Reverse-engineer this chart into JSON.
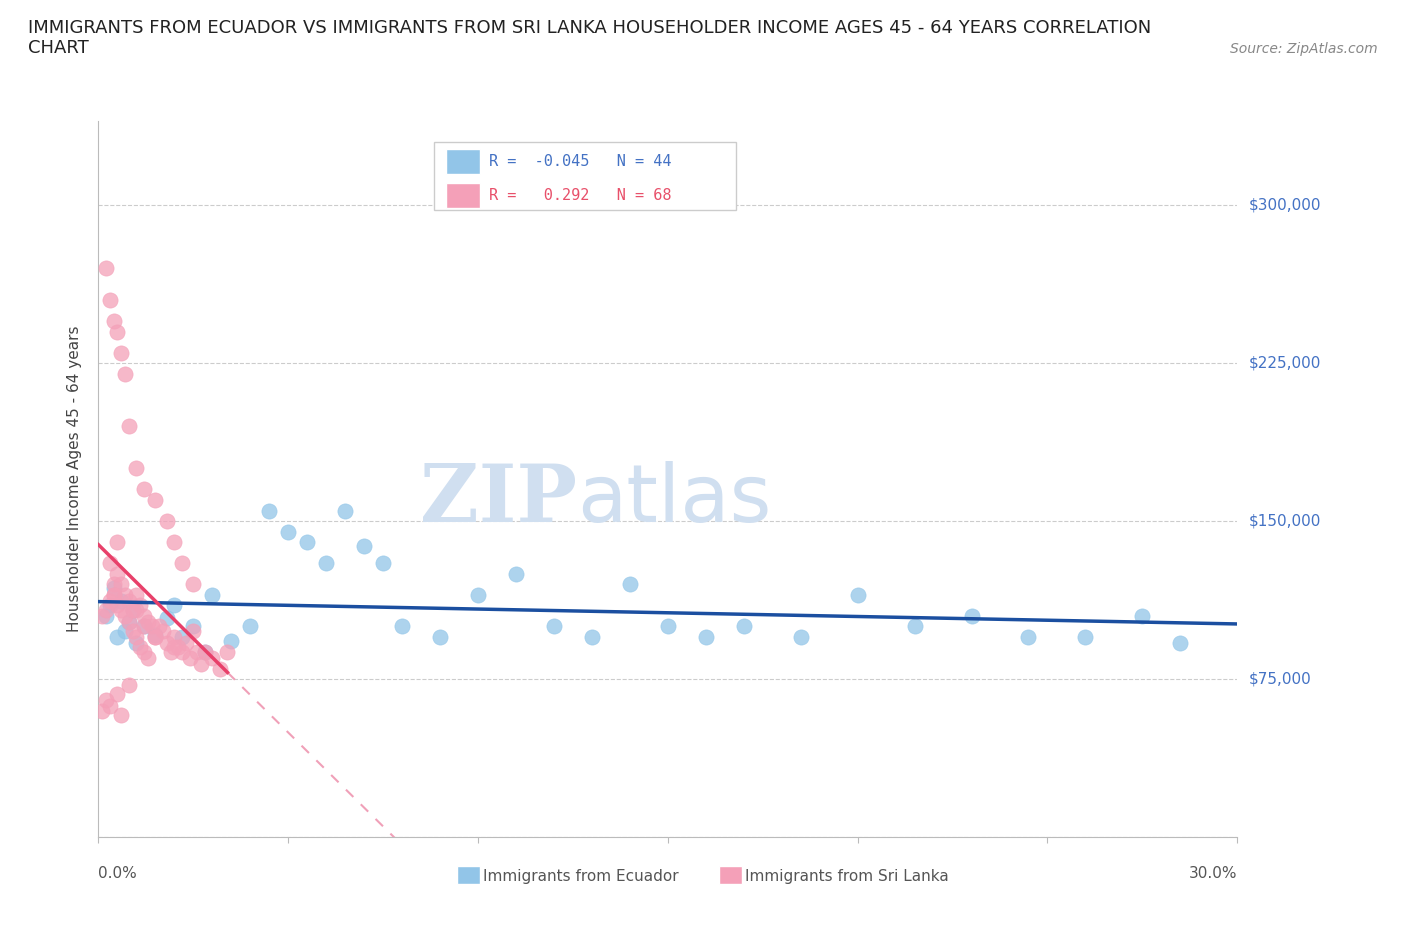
{
  "title": "IMMIGRANTS FROM ECUADOR VS IMMIGRANTS FROM SRI LANKA HOUSEHOLDER INCOME AGES 45 - 64 YEARS CORRELATION\nCHART",
  "source": "Source: ZipAtlas.com",
  "ylabel": "Householder Income Ages 45 - 64 years",
  "xlim": [
    0.0,
    0.3
  ],
  "ylim": [
    0,
    340000
  ],
  "yticks": [
    0,
    75000,
    150000,
    225000,
    300000
  ],
  "ytick_labels": [
    "",
    "$75,000",
    "$150,000",
    "$225,000",
    "$300,000"
  ],
  "xticks": [
    0.0,
    0.05,
    0.1,
    0.15,
    0.2,
    0.25,
    0.3
  ],
  "ecuador_R": -0.045,
  "ecuador_N": 44,
  "srilanka_R": 0.292,
  "srilanka_N": 68,
  "ecuador_color": "#92C5E8",
  "srilanka_color": "#F4A0B8",
  "ecuador_line_color": "#1B4FA0",
  "srilanka_line_color": "#E8406A",
  "srilanka_dash_color": "#F0A0B8",
  "watermark_color": "#D0DFF0",
  "ecuador_x": [
    0.002,
    0.003,
    0.004,
    0.005,
    0.006,
    0.007,
    0.008,
    0.009,
    0.01,
    0.012,
    0.015,
    0.018,
    0.02,
    0.022,
    0.025,
    0.028,
    0.03,
    0.035,
    0.04,
    0.045,
    0.05,
    0.055,
    0.06,
    0.065,
    0.07,
    0.075,
    0.08,
    0.09,
    0.1,
    0.11,
    0.12,
    0.13,
    0.14,
    0.15,
    0.16,
    0.17,
    0.185,
    0.2,
    0.215,
    0.23,
    0.245,
    0.26,
    0.275,
    0.285
  ],
  "ecuador_y": [
    105000,
    110000,
    118000,
    95000,
    112000,
    98000,
    102000,
    108000,
    92000,
    100000,
    96000,
    104000,
    110000,
    95000,
    100000,
    88000,
    115000,
    93000,
    100000,
    155000,
    145000,
    140000,
    130000,
    155000,
    138000,
    130000,
    100000,
    95000,
    115000,
    125000,
    100000,
    95000,
    120000,
    100000,
    95000,
    100000,
    95000,
    115000,
    100000,
    105000,
    95000,
    95000,
    105000,
    92000
  ],
  "srilanka_x": [
    0.003,
    0.004,
    0.004,
    0.005,
    0.005,
    0.005,
    0.006,
    0.006,
    0.007,
    0.007,
    0.008,
    0.008,
    0.009,
    0.009,
    0.01,
    0.01,
    0.011,
    0.011,
    0.012,
    0.012,
    0.013,
    0.013,
    0.014,
    0.015,
    0.016,
    0.017,
    0.018,
    0.019,
    0.02,
    0.021,
    0.022,
    0.023,
    0.024,
    0.025,
    0.026,
    0.027,
    0.028,
    0.03,
    0.032,
    0.034,
    0.002,
    0.003,
    0.004,
    0.005,
    0.006,
    0.007,
    0.008,
    0.01,
    0.012,
    0.015,
    0.018,
    0.02,
    0.022,
    0.025,
    0.001,
    0.001,
    0.002,
    0.002,
    0.003,
    0.003,
    0.004,
    0.005,
    0.006,
    0.008,
    0.01,
    0.012,
    0.015,
    0.02
  ],
  "srilanka_y": [
    130000,
    120000,
    115000,
    140000,
    125000,
    110000,
    108000,
    120000,
    115000,
    105000,
    112000,
    102000,
    108000,
    98000,
    115000,
    95000,
    110000,
    90000,
    105000,
    88000,
    102000,
    85000,
    100000,
    95000,
    100000,
    98000,
    92000,
    88000,
    95000,
    90000,
    88000,
    92000,
    85000,
    98000,
    88000,
    82000,
    88000,
    85000,
    80000,
    88000,
    270000,
    255000,
    245000,
    240000,
    230000,
    220000,
    195000,
    175000,
    165000,
    160000,
    150000,
    140000,
    130000,
    120000,
    60000,
    105000,
    108000,
    65000,
    112000,
    62000,
    115000,
    68000,
    58000,
    72000,
    108000,
    100000,
    95000,
    90000
  ]
}
